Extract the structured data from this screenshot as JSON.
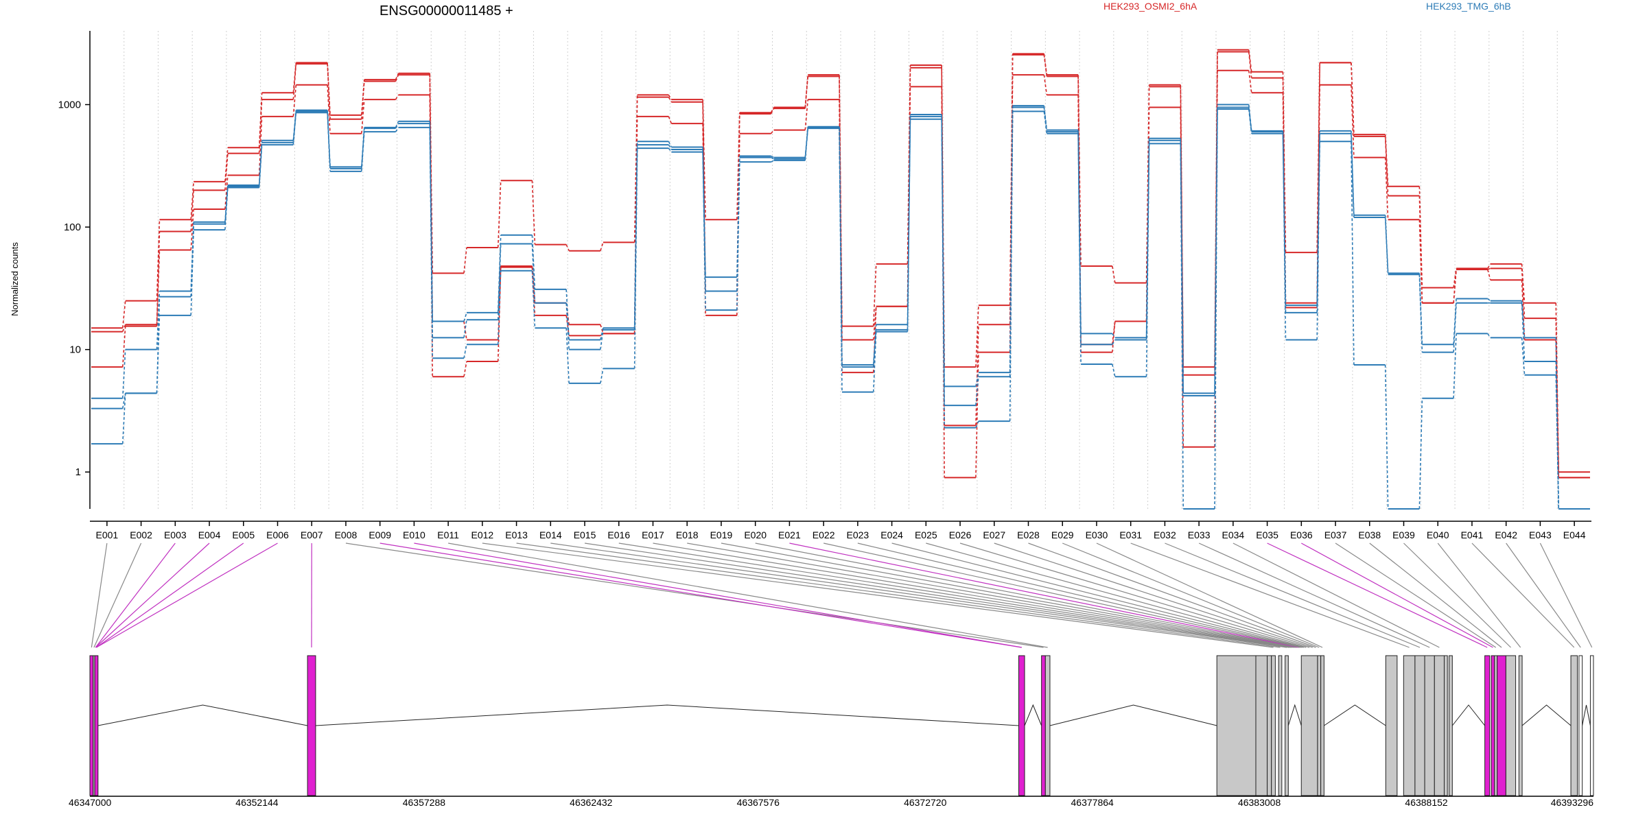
{
  "chart_data": {
    "type": "line",
    "title": "ENSG00000011485 +",
    "ylabel": "Normalized counts",
    "y_scale": "log",
    "ylim": [
      0.5,
      4000
    ],
    "y_ticks": [
      {
        "value": 1,
        "label": "1"
      },
      {
        "value": 10,
        "label": "10"
      },
      {
        "value": 100,
        "label": "100"
      },
      {
        "value": 1000,
        "label": "1000"
      }
    ],
    "grid": "vertical dotted",
    "legend_position": "top-right",
    "exons": [
      "E001",
      "E002",
      "E003",
      "E004",
      "E005",
      "E006",
      "E007",
      "E008",
      "E009",
      "E010",
      "E011",
      "E012",
      "E013",
      "E014",
      "E015",
      "E016",
      "E017",
      "E018",
      "E019",
      "E020",
      "E021",
      "E022",
      "E023",
      "E024",
      "E025",
      "E026",
      "E027",
      "E028",
      "E029",
      "E030",
      "E031",
      "E032",
      "E033",
      "E034",
      "E035",
      "E036",
      "E037",
      "E038",
      "E039",
      "E040",
      "E041",
      "E042",
      "E043",
      "E044"
    ],
    "series": [
      {
        "name": "HEK293_OSMI2_6hA",
        "color": "#d62728",
        "values": [
          15,
          25,
          115,
          235,
          445,
          1250,
          2200,
          820,
          1600,
          1800,
          42,
          68,
          240,
          72,
          64,
          75,
          1200,
          1100,
          115,
          860,
          950,
          1750,
          15.5,
          50,
          2100,
          7.2,
          23,
          2600,
          1750,
          48,
          35,
          1450,
          7.2,
          2800,
          1850,
          62,
          2200,
          570,
          215,
          32,
          46,
          50,
          24,
          1.0
        ]
      },
      {
        "name": "",
        "color": "#d62728",
        "values": [
          14,
          16,
          92,
          200,
          400,
          1100,
          2150,
          760,
          1550,
          1750,
          17,
          12,
          48,
          24,
          16,
          13.5,
          1150,
          1050,
          30,
          840,
          930,
          1700,
          12,
          22.5,
          2000,
          2.4,
          16,
          2550,
          1700,
          11,
          17,
          1400,
          6.2,
          2700,
          1650,
          24,
          2200,
          550,
          180,
          24,
          45,
          46,
          18,
          0.9
        ]
      },
      {
        "name": "",
        "color": "#d62728",
        "values": [
          7.2,
          15.5,
          65,
          140,
          265,
          800,
          1450,
          580,
          1100,
          1200,
          6,
          8,
          47,
          19,
          13,
          13.5,
          800,
          700,
          19,
          580,
          620,
          1100,
          6.5,
          22.5,
          1400,
          0.9,
          9.5,
          1750,
          1200,
          9.5,
          17,
          950,
          1.6,
          1900,
          1250,
          22,
          1450,
          370,
          115,
          24,
          45,
          37,
          12,
          0.9
        ]
      },
      {
        "name": "HEK293_TMG_6hB",
        "color": "#2c7bb6",
        "values": [
          4,
          10,
          30,
          110,
          220,
          510,
          900,
          310,
          650,
          730,
          17,
          20,
          86,
          31,
          12,
          15,
          500,
          450,
          39,
          380,
          370,
          660,
          7.5,
          16,
          830,
          5,
          6.5,
          980,
          620,
          13.5,
          12.5,
          530,
          4.4,
          1000,
          610,
          23,
          610,
          125,
          42,
          11,
          26,
          25,
          12.5,
          0.5
        ]
      },
      {
        "name": "",
        "color": "#2c7bb6",
        "values": [
          3.3,
          4.4,
          27,
          106,
          215,
          490,
          880,
          300,
          640,
          700,
          12.5,
          17.5,
          73,
          24,
          10,
          14.5,
          470,
          430,
          30,
          370,
          360,
          650,
          7.2,
          14.5,
          800,
          3.5,
          6,
          950,
          600,
          11,
          12,
          510,
          4.2,
          950,
          600,
          20,
          580,
          120,
          41,
          9.5,
          24,
          24,
          8,
          0.5
        ]
      },
      {
        "name": "",
        "color": "#2c7bb6",
        "values": [
          1.7,
          4.4,
          19,
          95,
          210,
          470,
          860,
          285,
          600,
          650,
          8.5,
          11,
          44,
          15,
          5.3,
          7,
          440,
          410,
          21,
          340,
          350,
          640,
          4.5,
          14,
          760,
          2.3,
          2.6,
          880,
          580,
          7.6,
          6,
          480,
          0.5,
          920,
          580,
          12,
          500,
          7.5,
          0.5,
          4,
          13.5,
          12.5,
          6.2,
          0.5
        ]
      }
    ],
    "genomic_axis": {
      "range": [
        46347000,
        46393296
      ],
      "ticks": [
        "46347000",
        "46352144",
        "46357288",
        "46362432",
        "46367576",
        "46372720",
        "46377864",
        "46383008",
        "46388152",
        "46393296"
      ]
    },
    "exon_blocks": [
      {
        "start": 46347000,
        "end": 46347100,
        "color": "#e020d0"
      },
      {
        "start": 46347100,
        "end": 46347150,
        "color": "#c8c8c8"
      },
      {
        "start": 46347150,
        "end": 46347250,
        "color": "#e020d0"
      },
      {
        "start": 46353700,
        "end": 46353950,
        "color": "#e020d0"
      },
      {
        "start": 46375600,
        "end": 46375780,
        "color": "#e020d0"
      },
      {
        "start": 46376300,
        "end": 46376420,
        "color": "#e020d0"
      },
      {
        "start": 46376420,
        "end": 46376560,
        "color": "#c8c8c8"
      },
      {
        "start": 46381700,
        "end": 46382900,
        "color": "#c8c8c8"
      },
      {
        "start": 46382900,
        "end": 46383250,
        "color": "#c8c8c8"
      },
      {
        "start": 46383250,
        "end": 46383380,
        "color": "#c8c8c8"
      },
      {
        "start": 46383380,
        "end": 46383500,
        "color": "#c8c8c8"
      },
      {
        "start": 46383600,
        "end": 46383700,
        "color": "#c8c8c8"
      },
      {
        "start": 46383800,
        "end": 46383900,
        "color": "#c8c8c8"
      },
      {
        "start": 46384300,
        "end": 46384800,
        "color": "#c8c8c8"
      },
      {
        "start": 46384800,
        "end": 46384900,
        "color": "#c8c8c8"
      },
      {
        "start": 46384900,
        "end": 46385000,
        "color": "#c8c8c8"
      },
      {
        "start": 46386900,
        "end": 46387250,
        "color": "#c8c8c8"
      },
      {
        "start": 46387450,
        "end": 46387800,
        "color": "#c8c8c8"
      },
      {
        "start": 46387800,
        "end": 46388100,
        "color": "#c8c8c8"
      },
      {
        "start": 46388100,
        "end": 46388400,
        "color": "#c8c8c8"
      },
      {
        "start": 46388400,
        "end": 46388700,
        "color": "#c8c8c8"
      },
      {
        "start": 46388700,
        "end": 46388800,
        "color": "#c8c8c8"
      },
      {
        "start": 46388850,
        "end": 46388950,
        "color": "#c8c8c8"
      },
      {
        "start": 46389950,
        "end": 46390100,
        "color": "#e020d0"
      },
      {
        "start": 46390150,
        "end": 46390250,
        "color": "#e020d0"
      },
      {
        "start": 46390250,
        "end": 46390330,
        "color": "#c8c8c8"
      },
      {
        "start": 46390330,
        "end": 46390600,
        "color": "#e020d0"
      },
      {
        "start": 46390600,
        "end": 46390900,
        "color": "#c8c8c8"
      },
      {
        "start": 46391000,
        "end": 46391100,
        "color": "#c8c8c8"
      },
      {
        "start": 46392600,
        "end": 46392800,
        "color": "#c8c8c8"
      },
      {
        "start": 46392850,
        "end": 46392950,
        "color": "#ffffff"
      },
      {
        "start": 46393200,
        "end": 46393296,
        "color": "#ffffff"
      }
    ],
    "introns": [
      {
        "start": 46347250,
        "end": 46353700
      },
      {
        "start": 46353950,
        "end": 46375600
      },
      {
        "start": 46375780,
        "end": 46376300
      },
      {
        "start": 46376560,
        "end": 46381700
      },
      {
        "start": 46383900,
        "end": 46384300
      },
      {
        "start": 46385000,
        "end": 46386900
      },
      {
        "start": 46388950,
        "end": 46389950
      },
      {
        "start": 46391100,
        "end": 46392600
      },
      {
        "start": 46392950,
        "end": 46393200
      }
    ],
    "exon_mapping": [
      {
        "start": 46347000,
        "end": 46347100,
        "color": "#888888"
      },
      {
        "start": 46347100,
        "end": 46347150,
        "color": "#888888"
      },
      {
        "start": 46347150,
        "end": 46347200,
        "color": "#c030c0"
      },
      {
        "start": 46347150,
        "end": 46347200,
        "color": "#c030c0"
      },
      {
        "start": 46347150,
        "end": 46347250,
        "color": "#c030c0"
      },
      {
        "start": 46347150,
        "end": 46347250,
        "color": "#c030c0"
      },
      {
        "start": 46353700,
        "end": 46353950,
        "color": "#c030c0"
      },
      {
        "start": 46376300,
        "end": 46376420,
        "color": "#888888"
      },
      {
        "start": 46375600,
        "end": 46375780,
        "color": "#c030c0"
      },
      {
        "start": 46375600,
        "end": 46375780,
        "color": "#c030c0"
      },
      {
        "start": 46376420,
        "end": 46376560,
        "color": "#888888"
      },
      {
        "start": 46383380,
        "end": 46383500,
        "color": "#888888"
      },
      {
        "start": 46383600,
        "end": 46383700,
        "color": "#888888"
      },
      {
        "start": 46383800,
        "end": 46383900,
        "color": "#888888"
      },
      {
        "start": 46383900,
        "end": 46383950,
        "color": "#888888"
      },
      {
        "start": 46383950,
        "end": 46384000,
        "color": "#888888"
      },
      {
        "start": 46384000,
        "end": 46384050,
        "color": "#888888"
      },
      {
        "start": 46384050,
        "end": 46384100,
        "color": "#888888"
      },
      {
        "start": 46384100,
        "end": 46384150,
        "color": "#888888"
      },
      {
        "start": 46384150,
        "end": 46384200,
        "color": "#888888"
      },
      {
        "start": 46384200,
        "end": 46384250,
        "color": "#c030c0"
      },
      {
        "start": 46384250,
        "end": 46384300,
        "color": "#888888"
      },
      {
        "start": 46384300,
        "end": 46384350,
        "color": "#888888"
      },
      {
        "start": 46384350,
        "end": 46384400,
        "color": "#888888"
      },
      {
        "start": 46384400,
        "end": 46384500,
        "color": "#888888"
      },
      {
        "start": 46384500,
        "end": 46384600,
        "color": "#888888"
      },
      {
        "start": 46384600,
        "end": 46384700,
        "color": "#888888"
      },
      {
        "start": 46384700,
        "end": 46384800,
        "color": "#888888"
      },
      {
        "start": 46384800,
        "end": 46384900,
        "color": "#888888"
      },
      {
        "start": 46384900,
        "end": 46385000,
        "color": "#888888"
      },
      {
        "start": 46387450,
        "end": 46387800,
        "color": "#888888"
      },
      {
        "start": 46387800,
        "end": 46388100,
        "color": "#888888"
      },
      {
        "start": 46388100,
        "end": 46388400,
        "color": "#888888"
      },
      {
        "start": 46388400,
        "end": 46388700,
        "color": "#888888"
      },
      {
        "start": 46389950,
        "end": 46390100,
        "color": "#c030c0"
      },
      {
        "start": 46390150,
        "end": 46390250,
        "color": "#c030c0"
      },
      {
        "start": 46390250,
        "end": 46390330,
        "color": "#888888"
      },
      {
        "start": 46390330,
        "end": 46390600,
        "color": "#888888"
      },
      {
        "start": 46390600,
        "end": 46390900,
        "color": "#888888"
      },
      {
        "start": 46391000,
        "end": 46391100,
        "color": "#888888"
      },
      {
        "start": 46392600,
        "end": 46392800,
        "color": "#888888"
      },
      {
        "start": 46392850,
        "end": 46392950,
        "color": "#888888"
      },
      {
        "start": 46393200,
        "end": 46393296,
        "color": "#888888"
      }
    ]
  }
}
